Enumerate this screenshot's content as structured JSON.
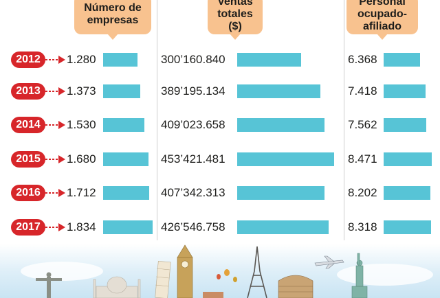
{
  "colors": {
    "bar": "#57c4d6",
    "year_badge": "#d7262a",
    "header": "#f8c28f",
    "arrow": "#d7262a"
  },
  "headers": {
    "companies": [
      "Número de",
      "empresas"
    ],
    "sales": [
      "Ventas",
      "totales",
      "($)"
    ],
    "staff": [
      "Personal",
      "ocupado-",
      "afiliado"
    ]
  },
  "chart_data": {
    "type": "bar",
    "categories": [
      "2012",
      "2013",
      "2014",
      "2015",
      "2016",
      "2017"
    ],
    "series": [
      {
        "name": "Número de empresas",
        "values": [
          1280,
          1373,
          1530,
          1680,
          1712,
          1834
        ],
        "labels": [
          "1.280",
          "1.373",
          "1.530",
          "1.680",
          "1.712",
          "1.834"
        ]
      },
      {
        "name": "Ventas totales ($)",
        "values": [
          300160840,
          389195134,
          409023658,
          453421481,
          407342313,
          426546758
        ],
        "labels": [
          "300’160.840",
          "389’195.134",
          "409’023.658",
          "453’421.481",
          "407’342.313",
          "426’546.758"
        ]
      },
      {
        "name": "Personal ocupado-afiliado",
        "values": [
          6368,
          7418,
          7562,
          8471,
          8202,
          8318
        ],
        "labels": [
          "6.368",
          "7.418",
          "7.562",
          "8.471",
          "8.202",
          "8.318"
        ]
      }
    ]
  }
}
